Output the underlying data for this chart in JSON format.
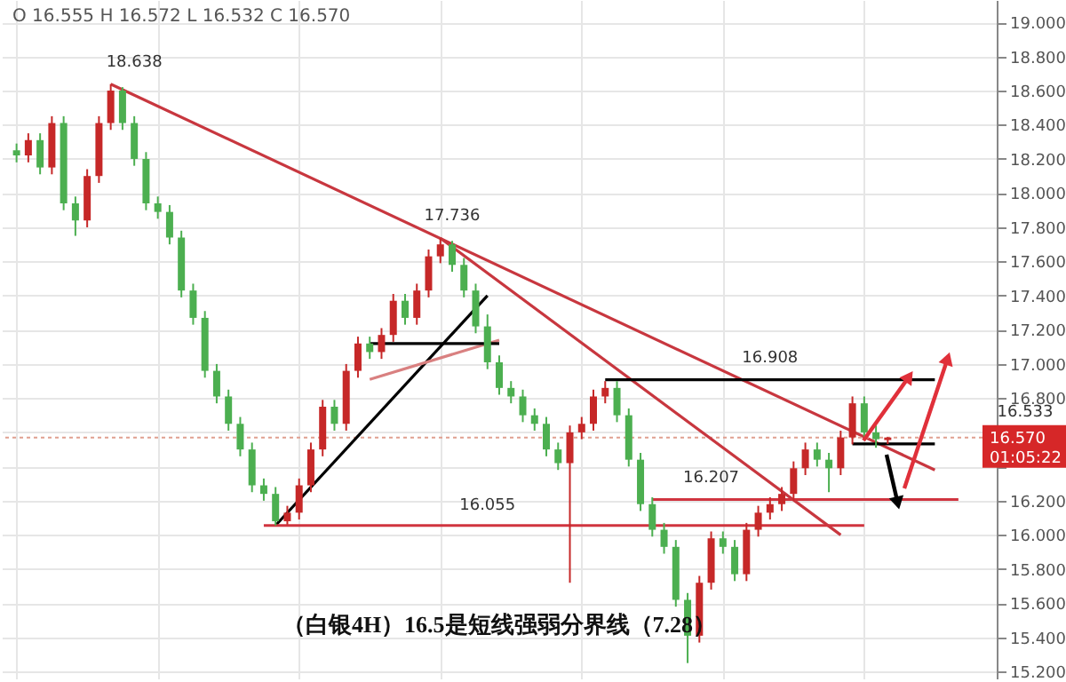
{
  "chart_data": {
    "type": "candlestick",
    "title": "（白银4H）16.5是短线强弱分界线（7.28）",
    "categories": [
      null,
      null,
      null,
      null,
      null,
      null,
      null,
      null,
      null,
      null,
      null,
      null,
      null,
      null,
      null,
      null,
      null,
      null,
      null,
      null,
      null,
      null,
      null,
      null,
      null,
      null,
      null,
      null,
      null,
      null,
      null,
      null,
      null,
      null,
      null,
      null,
      null,
      null,
      null,
      null,
      null,
      null,
      null,
      null,
      null,
      null,
      null,
      null,
      null,
      null,
      null,
      null,
      null,
      null,
      null,
      null,
      null,
      null,
      null,
      null,
      null,
      null,
      null,
      null,
      null,
      null,
      null,
      null,
      null,
      null,
      null,
      null,
      null,
      null,
      null,
      null,
      null,
      null,
      null,
      null,
      null,
      null,
      null
    ],
    "ohlc": [
      [
        18.25,
        18.29,
        18.18,
        18.22
      ],
      [
        18.22,
        18.35,
        18.18,
        18.31
      ],
      [
        18.31,
        18.35,
        18.11,
        18.15
      ],
      [
        18.15,
        18.45,
        18.11,
        18.41
      ],
      [
        18.41,
        18.45,
        17.9,
        17.94
      ],
      [
        17.94,
        17.98,
        17.75,
        17.84
      ],
      [
        17.84,
        18.14,
        17.8,
        18.1
      ],
      [
        18.1,
        18.45,
        18.06,
        18.41
      ],
      [
        18.41,
        18.638,
        18.37,
        18.6
      ],
      [
        18.6,
        18.62,
        18.37,
        18.41
      ],
      [
        18.41,
        18.45,
        18.16,
        18.2
      ],
      [
        18.2,
        18.24,
        17.9,
        17.94
      ],
      [
        17.94,
        17.98,
        17.85,
        17.89
      ],
      [
        17.89,
        17.93,
        17.7,
        17.74
      ],
      [
        17.74,
        17.78,
        17.39,
        17.43
      ],
      [
        17.43,
        17.47,
        17.23,
        17.27
      ],
      [
        17.27,
        17.31,
        16.92,
        16.96
      ],
      [
        16.96,
        17.0,
        16.77,
        16.81
      ],
      [
        16.81,
        16.85,
        16.61,
        16.65
      ],
      [
        16.65,
        16.69,
        16.46,
        16.5
      ],
      [
        16.5,
        16.54,
        16.25,
        16.29
      ],
      [
        16.29,
        16.33,
        16.2,
        16.24
      ],
      [
        16.24,
        16.28,
        16.055,
        16.08
      ],
      [
        16.08,
        16.17,
        16.06,
        16.13
      ],
      [
        16.13,
        16.33,
        16.09,
        16.29
      ],
      [
        16.29,
        16.54,
        16.25,
        16.5
      ],
      [
        16.5,
        16.79,
        16.46,
        16.75
      ],
      [
        16.75,
        16.79,
        16.61,
        16.65
      ],
      [
        16.65,
        17.0,
        16.61,
        16.96
      ],
      [
        16.96,
        17.16,
        16.92,
        17.12
      ],
      [
        17.12,
        17.16,
        17.03,
        17.07
      ],
      [
        17.07,
        17.21,
        17.03,
        17.17
      ],
      [
        17.17,
        17.41,
        17.13,
        17.37
      ],
      [
        17.37,
        17.41,
        17.23,
        17.27
      ],
      [
        17.27,
        17.47,
        17.23,
        17.43
      ],
      [
        17.43,
        17.67,
        17.39,
        17.63
      ],
      [
        17.63,
        17.736,
        17.59,
        17.7
      ],
      [
        17.7,
        17.72,
        17.54,
        17.58
      ],
      [
        17.58,
        17.62,
        17.39,
        17.43
      ],
      [
        17.43,
        17.47,
        17.18,
        17.22
      ],
      [
        17.22,
        17.29,
        16.97,
        17.01
      ],
      [
        17.01,
        17.05,
        16.82,
        16.86
      ],
      [
        16.86,
        16.9,
        16.77,
        16.81
      ],
      [
        16.81,
        16.85,
        16.66,
        16.7
      ],
      [
        16.7,
        16.74,
        16.61,
        16.65
      ],
      [
        16.65,
        16.69,
        16.46,
        16.5
      ],
      [
        16.5,
        16.54,
        16.38,
        16.42
      ],
      [
        16.42,
        16.64,
        15.72,
        16.6
      ],
      [
        16.6,
        16.69,
        16.56,
        16.65
      ],
      [
        16.65,
        16.85,
        16.61,
        16.81
      ],
      [
        16.81,
        16.9,
        16.77,
        16.86
      ],
      [
        16.86,
        16.9,
        16.66,
        16.7
      ],
      [
        16.7,
        16.74,
        16.4,
        16.44
      ],
      [
        16.44,
        16.48,
        16.14,
        16.18
      ],
      [
        16.18,
        16.22,
        15.99,
        16.03
      ],
      [
        16.03,
        16.07,
        15.89,
        15.93
      ],
      [
        15.93,
        15.97,
        15.58,
        15.62
      ],
      [
        15.62,
        15.66,
        15.25,
        15.41
      ],
      [
        15.41,
        15.76,
        15.37,
        15.72
      ],
      [
        15.72,
        16.02,
        15.68,
        15.98
      ],
      [
        15.98,
        16.02,
        15.89,
        15.93
      ],
      [
        15.93,
        15.97,
        15.73,
        15.77
      ],
      [
        15.77,
        16.07,
        15.73,
        16.03
      ],
      [
        16.03,
        16.17,
        15.99,
        16.13
      ],
      [
        16.13,
        16.22,
        16.09,
        16.18
      ],
      [
        16.18,
        16.28,
        16.14,
        16.24
      ],
      [
        16.24,
        16.43,
        16.2,
        16.39
      ],
      [
        16.39,
        16.54,
        16.35,
        16.5
      ],
      [
        16.5,
        16.54,
        16.4,
        16.44
      ],
      [
        16.44,
        16.48,
        16.25,
        16.39
      ],
      [
        16.39,
        16.61,
        16.35,
        16.57
      ],
      [
        16.57,
        16.81,
        16.53,
        16.77
      ],
      [
        16.77,
        16.81,
        16.56,
        16.6
      ],
      [
        16.6,
        16.64,
        16.51,
        16.56
      ],
      [
        16.555,
        16.572,
        16.532,
        16.57
      ],
      null,
      null,
      null,
      null,
      null,
      null,
      null,
      null
    ],
    "colors": [
      "#4caf50",
      "#c62828",
      "#4caf50",
      "#c62828",
      "#4caf50",
      "#4caf50",
      "#c62828",
      "#c62828",
      "#c62828",
      "#4caf50",
      "#4caf50",
      "#4caf50",
      "#4caf50",
      "#4caf50",
      "#4caf50",
      "#4caf50",
      "#4caf50",
      "#4caf50",
      "#4caf50",
      "#4caf50",
      "#4caf50",
      "#4caf50",
      "#4caf50",
      "#c62828",
      "#c62828",
      "#c62828",
      "#c62828",
      "#4caf50",
      "#c62828",
      "#c62828",
      "#4caf50",
      "#c62828",
      "#c62828",
      "#4caf50",
      "#c62828",
      "#c62828",
      "#c62828",
      "#4caf50",
      "#4caf50",
      "#4caf50",
      "#4caf50",
      "#4caf50",
      "#4caf50",
      "#4caf50",
      "#4caf50",
      "#4caf50",
      "#4caf50",
      "#c62828",
      "#c62828",
      "#c62828",
      "#c62828",
      "#4caf50",
      "#4caf50",
      "#4caf50",
      "#4caf50",
      "#4caf50",
      "#4caf50",
      "#4caf50",
      "#c62828",
      "#c62828",
      "#4caf50",
      "#4caf50",
      "#c62828",
      "#c62828",
      "#c62828",
      "#c62828",
      "#c62828",
      "#c62828",
      "#4caf50",
      "#4caf50",
      "#c62828",
      "#c62828",
      "#4caf50",
      "#4caf50",
      "#c62828",
      null,
      null,
      null,
      null,
      null,
      null,
      null,
      null
    ],
    "series": [
      {
        "type": "line",
        "color": "#c8373f",
        "values": [
          null,
          null,
          null,
          null,
          null,
          null,
          null,
          null,
          18.638,
          null,
          null,
          null,
          null,
          null,
          null,
          null,
          null,
          null,
          null,
          null,
          null,
          null,
          null,
          null,
          null,
          null,
          null,
          null,
          null,
          null,
          null,
          null,
          null,
          null,
          null,
          null,
          null,
          null,
          null,
          null,
          null,
          null,
          null,
          null,
          null,
          null,
          null,
          null,
          null,
          null,
          null,
          null,
          null,
          null,
          null,
          null,
          null,
          null,
          null,
          null,
          null,
          null,
          null,
          null,
          null,
          null,
          null,
          null,
          null,
          null,
          null,
          null,
          null,
          null,
          null,
          null,
          null,
          null,
          16.38,
          null,
          null,
          null,
          null
        ]
      },
      {
        "type": "line",
        "color": "#c8373f",
        "values": [
          null,
          null,
          null,
          null,
          null,
          null,
          null,
          null,
          null,
          null,
          null,
          null,
          null,
          null,
          null,
          null,
          null,
          null,
          null,
          null,
          null,
          null,
          null,
          null,
          null,
          null,
          null,
          null,
          null,
          null,
          null,
          null,
          null,
          null,
          null,
          null,
          17.736,
          null,
          null,
          null,
          null,
          null,
          null,
          null,
          null,
          null,
          null,
          null,
          null,
          null,
          null,
          null,
          null,
          null,
          null,
          null,
          null,
          null,
          null,
          null,
          null,
          null,
          null,
          null,
          null,
          null,
          null,
          null,
          null,
          null,
          16.0,
          null,
          null,
          null,
          null,
          null,
          null,
          null,
          null,
          null,
          null,
          null,
          null
        ]
      },
      {
        "type": "line",
        "color": "#000000",
        "values": [
          null,
          null,
          null,
          null,
          null,
          null,
          null,
          null,
          null,
          null,
          null,
          null,
          null,
          null,
          null,
          null,
          null,
          null,
          null,
          null,
          null,
          null,
          16.055,
          null,
          null,
          null,
          null,
          null,
          null,
          null,
          null,
          null,
          null,
          null,
          null,
          null,
          null,
          null,
          null,
          null,
          17.4,
          null,
          null,
          null,
          null,
          null,
          null,
          null,
          null,
          null,
          null,
          null,
          null,
          null,
          null,
          null,
          null,
          null,
          null,
          null,
          null,
          null,
          null,
          null,
          null,
          null,
          null,
          null,
          null,
          null,
          null,
          null,
          null,
          null,
          null,
          null,
          null,
          null,
          null,
          null,
          null,
          null,
          null
        ]
      },
      {
        "type": "line",
        "color": "#d98080",
        "values": [
          null,
          null,
          null,
          null,
          null,
          null,
          null,
          null,
          null,
          null,
          null,
          null,
          null,
          null,
          null,
          null,
          null,
          null,
          null,
          null,
          null,
          null,
          null,
          null,
          null,
          null,
          null,
          null,
          null,
          null,
          16.91,
          null,
          null,
          null,
          null,
          null,
          null,
          null,
          null,
          null,
          null,
          17.14,
          null,
          null,
          null,
          null,
          null,
          null,
          null,
          null,
          null,
          null,
          null,
          null,
          null,
          null,
          null,
          null,
          null,
          null,
          null,
          null,
          null,
          null,
          null,
          null,
          null,
          null,
          null,
          null,
          null,
          null,
          null,
          null,
          null,
          null,
          null,
          null,
          null,
          null,
          null,
          null,
          null
        ]
      },
      {
        "type": "line",
        "color": "#000000",
        "values": [
          null,
          null,
          null,
          null,
          null,
          null,
          null,
          null,
          null,
          null,
          null,
          null,
          null,
          null,
          null,
          null,
          null,
          null,
          null,
          null,
          null,
          null,
          null,
          null,
          null,
          null,
          null,
          null,
          null,
          null,
          17.12,
          null,
          null,
          null,
          null,
          null,
          null,
          null,
          null,
          null,
          null,
          17.12,
          null,
          null,
          null,
          null,
          null,
          null,
          null,
          null,
          null,
          null,
          null,
          null,
          null,
          null,
          null,
          null,
          null,
          null,
          null,
          null,
          null,
          null,
          null,
          null,
          null,
          null,
          null,
          null,
          null,
          null,
          null,
          null,
          null,
          null,
          null,
          null,
          null,
          null,
          null,
          null,
          null
        ]
      },
      {
        "type": "line",
        "color": "#000000",
        "values": [
          null,
          null,
          null,
          null,
          null,
          null,
          null,
          null,
          null,
          null,
          null,
          null,
          null,
          null,
          null,
          null,
          null,
          null,
          null,
          null,
          null,
          null,
          null,
          null,
          null,
          null,
          null,
          null,
          null,
          null,
          null,
          null,
          null,
          null,
          null,
          null,
          null,
          null,
          null,
          null,
          null,
          null,
          null,
          null,
          null,
          null,
          null,
          null,
          null,
          null,
          16.908,
          null,
          null,
          null,
          null,
          null,
          null,
          null,
          null,
          null,
          null,
          null,
          null,
          null,
          null,
          null,
          null,
          null,
          null,
          null,
          null,
          null,
          null,
          null,
          null,
          null,
          null,
          null,
          16.908,
          null,
          null,
          null,
          null
        ]
      },
      {
        "type": "line",
        "color": "#000000",
        "values": [
          null,
          null,
          null,
          null,
          null,
          null,
          null,
          null,
          null,
          null,
          null,
          null,
          null,
          null,
          null,
          null,
          null,
          null,
          null,
          null,
          null,
          null,
          null,
          null,
          null,
          null,
          null,
          null,
          null,
          null,
          null,
          null,
          null,
          null,
          null,
          null,
          null,
          null,
          null,
          null,
          null,
          null,
          null,
          null,
          null,
          null,
          null,
          null,
          null,
          null,
          null,
          null,
          null,
          null,
          null,
          null,
          null,
          null,
          null,
          null,
          null,
          null,
          null,
          null,
          null,
          null,
          null,
          null,
          null,
          null,
          null,
          16.533,
          null,
          null,
          null,
          null,
          null,
          null,
          16.533,
          null,
          null,
          null,
          null
        ]
      },
      {
        "type": "line",
        "color": "#d0343f",
        "values": [
          null,
          null,
          null,
          null,
          null,
          null,
          null,
          null,
          null,
          null,
          null,
          null,
          null,
          null,
          null,
          null,
          null,
          null,
          null,
          null,
          null,
          null,
          null,
          null,
          null,
          null,
          null,
          null,
          null,
          null,
          null,
          null,
          null,
          null,
          null,
          null,
          null,
          null,
          null,
          null,
          null,
          null,
          null,
          null,
          null,
          null,
          null,
          null,
          null,
          null,
          null,
          null,
          null,
          null,
          16.207,
          null,
          null,
          null,
          null,
          null,
          null,
          null,
          null,
          null,
          null,
          null,
          null,
          null,
          null,
          null,
          null,
          null,
          null,
          null,
          null,
          null,
          null,
          null,
          null,
          null,
          16.207,
          null,
          null
        ]
      },
      {
        "type": "line",
        "color": "#d0343f",
        "values": [
          null,
          null,
          null,
          null,
          null,
          null,
          null,
          null,
          null,
          null,
          null,
          null,
          null,
          null,
          null,
          null,
          null,
          null,
          null,
          null,
          null,
          16.055,
          null,
          null,
          null,
          null,
          null,
          null,
          null,
          null,
          null,
          null,
          null,
          null,
          null,
          null,
          null,
          null,
          null,
          null,
          null,
          null,
          null,
          null,
          null,
          null,
          null,
          null,
          null,
          null,
          null,
          null,
          null,
          null,
          null,
          null,
          null,
          null,
          null,
          null,
          null,
          null,
          null,
          null,
          null,
          null,
          null,
          null,
          null,
          null,
          null,
          null,
          16.055,
          null,
          null,
          null,
          null,
          null,
          null,
          null,
          null,
          null,
          null
        ]
      }
    ],
    "ref_lines": [
      {
        "axis": "y",
        "value": 16.57,
        "color": "#e0a090",
        "line_style": "dotted"
      }
    ],
    "annotations": [
      "O 16.555 H 16.572 L 16.532 C 16.570",
      {
        "text": "18.638",
        "y": 18.638
      },
      {
        "text": "17.736",
        "y": 17.736
      },
      {
        "text": "16.055",
        "y": 16.055
      },
      {
        "text": "16.207",
        "y": 16.207
      },
      {
        "text": "16.908",
        "y": 16.908
      },
      "16.533",
      "16.570",
      "01:05:22"
    ],
    "ylim": [
      15.16,
      19.13
    ],
    "yticks": [
      {
        "value": 15.2,
        "label": "15.200"
      },
      {
        "value": 15.4,
        "label": "15.400"
      },
      {
        "value": 15.6,
        "label": "15.600"
      },
      {
        "value": 15.8,
        "label": "15.800"
      },
      {
        "value": 16.0,
        "label": "16.000"
      },
      {
        "value": 16.2,
        "label": "16.200"
      },
      {
        "value": 16.4,
        "label": null
      },
      {
        "value": 16.6,
        "label": null
      },
      {
        "value": 16.8,
        "label": "16.800"
      },
      {
        "value": 17.0,
        "label": "17.000"
      },
      {
        "value": 17.2,
        "label": "17.200"
      },
      {
        "value": 17.4,
        "label": "17.400"
      },
      {
        "value": 17.6,
        "label": "17.600"
      },
      {
        "value": 17.8,
        "label": "17.800"
      },
      {
        "value": 18.0,
        "label": "18.000"
      },
      {
        "value": 18.2,
        "label": "18.200"
      },
      {
        "value": 18.4,
        "label": "18.400"
      },
      {
        "value": 18.6,
        "label": "18.600"
      },
      {
        "value": 18.8,
        "label": "18.800"
      },
      {
        "value": 19.0,
        "label": "19.000"
      }
    ],
    "grid": true,
    "tick_labels": "y"
  }
}
